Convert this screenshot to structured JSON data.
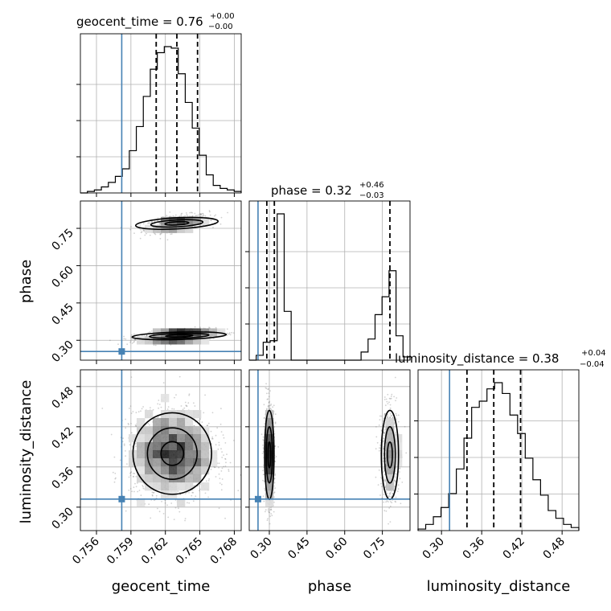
{
  "chart_data": {
    "type": "corner",
    "parameters": [
      {
        "name": "geocent_time",
        "label": "geocent_time",
        "range": [
          0.7546,
          0.7686
        ],
        "ticks": [
          0.756,
          0.759,
          0.762,
          0.765,
          0.768
        ],
        "tick_labels": [
          "0.756",
          "0.759",
          "0.762",
          "0.765",
          "0.768"
        ],
        "truth": 0.7582,
        "quantiles": [
          0.7612,
          0.763,
          0.7648
        ],
        "title_main": "geocent_time = 0.76",
        "title_plus": "+0.00",
        "title_minus": "−0.00",
        "histogram": [
          0,
          0.01,
          0.02,
          0.04,
          0.07,
          0.11,
          0.16,
          0.28,
          0.44,
          0.64,
          0.82,
          0.93,
          0.97,
          0.96,
          0.79,
          0.6,
          0.43,
          0.25,
          0.12,
          0.05,
          0.03,
          0.02,
          0.01
        ]
      },
      {
        "name": "phase",
        "label": "phase",
        "range": [
          0.22,
          0.86
        ],
        "ticks": [
          0.3,
          0.45,
          0.6,
          0.75
        ],
        "tick_labels": [
          "0.30",
          "0.45",
          "0.60",
          "0.75"
        ],
        "truth": 0.255,
        "quantiles": [
          0.29,
          0.32,
          0.78
        ],
        "title_main": "phase = 0.32",
        "title_plus": "+0.46",
        "title_minus": "−0.03",
        "histogram": [
          0,
          0.03,
          0.11,
          0.12,
          0.9,
          0.3,
          0,
          0,
          0,
          0,
          0,
          0,
          0,
          0,
          0,
          0,
          0.05,
          0.13,
          0.28,
          0.39,
          0.55,
          0.15,
          0.02
        ]
      },
      {
        "name": "luminosity_distance",
        "label": "luminosity_distance",
        "range": [
          0.265,
          0.505
        ],
        "ticks": [
          0.3,
          0.36,
          0.42,
          0.48
        ],
        "tick_labels": [
          "0.30",
          "0.36",
          "0.42",
          "0.48"
        ],
        "truth": 0.312,
        "quantiles": [
          0.338,
          0.378,
          0.418
        ],
        "title_main": "luminosity_distance = 0.38",
        "title_plus": "+0.04",
        "title_minus": "−0.04",
        "histogram": [
          0.01,
          0.04,
          0.09,
          0.15,
          0.24,
          0.4,
          0.6,
          0.8,
          0.84,
          0.92,
          0.96,
          0.89,
          0.75,
          0.63,
          0.47,
          0.33,
          0.23,
          0.13,
          0.08,
          0.04,
          0.02
        ]
      }
    ],
    "pairs": [
      {
        "x": "geocent_time",
        "y": "phase",
        "clusters": [
          {
            "x": 0.763,
            "y": 0.77,
            "sx": 0.0014,
            "sy": 0.018,
            "rho": 0.55,
            "n": 650
          },
          {
            "x": 0.7632,
            "y": 0.318,
            "sx": 0.0016,
            "sy": 0.012,
            "rho": 0.45,
            "n": 1100
          }
        ]
      },
      {
        "x": "geocent_time",
        "y": "luminosity_distance",
        "clusters": [
          {
            "x": 0.7626,
            "y": 0.38,
            "sx": 0.0018,
            "sy": 0.032,
            "rho": 0.0,
            "n": 1900
          }
        ]
      },
      {
        "x": "phase",
        "y": "luminosity_distance",
        "clusters": [
          {
            "x": 0.3,
            "y": 0.378,
            "sx": 0.01,
            "sy": 0.035,
            "rho": 0.0,
            "n": 1150
          },
          {
            "x": 0.78,
            "y": 0.378,
            "sx": 0.018,
            "sy": 0.035,
            "rho": 0.0,
            "n": 750
          }
        ]
      }
    ],
    "truth_color": "#4682b4",
    "grid": true
  }
}
